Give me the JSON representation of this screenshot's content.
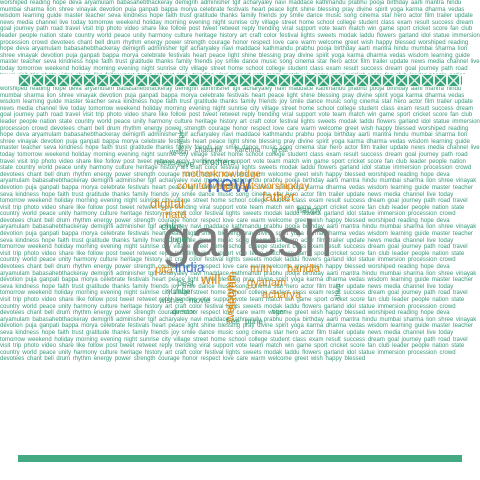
{
  "colors": {
    "grey": "#737373",
    "blue": "#4a6fc4",
    "orange": "#d88a1a",
    "green": "#3f9a74",
    "teal": "#2e8b80",
    "band": "#3aa57c"
  },
  "words": {
    "ganesh": "ganesh",
    "new": "new",
    "digital": "digital",
    "father": "father",
    "motherknowledge": "motherknowledge",
    "countdownparentsworshipday": "countdownparentsworshipday",
    "brothers": "brothers",
    "mata": "mata",
    "chanting": "chanting",
    "love": "love",
    "happy": "happy",
    "happiness": "happiness",
    "pita": "pita",
    "india": "india",
    "will": "will",
    "truth": "truth",
    "bandla": "bandla",
    "gyanam": "gyanam",
    "satyam": "satyam",
    "acharya": "acharya",
    "welcome": "welcome",
    "best": "best",
    "number": "number",
    "chkn": "chkn",
    "dugan": "dugan",
    "wishes": "wishes",
    "movie": "movie",
    "release": "release",
    "watch": "watch",
    "chaturthi": "chaturthi",
    "karenna": "karenna",
    "great": "great",
    "year": "year",
    "temple": "temple",
    "ramesh": "ramesh",
    "kumar": "kumar",
    "festival": "festival",
    "guru": "guru",
    "mother": "mother",
    "fans": "fans",
    "day": "day",
    "god": "god",
    "tweets": "tweets",
    "blessings": "blessings",
    "family": "family",
    "today": "today",
    "free": "free",
    "pune": "pune",
    "director": "director",
    "hyderabad": "hyderabad",
    "lord": "lord",
    "tiger": "tiger",
    "shiva": "shiva",
    "amma": "amma",
    "nani": "nani"
  },
  "filler_text": "worshiped reading hope deva aryamulam babasahebthackeray demigrifi adminisher tgif acharyaley navi maddace kathmandu prabhu pooja birthday aarti mantra hindu mumbai sharma lion shree vinayak devotion puja ganpati bappa morya celebrate festivals heart peace light shine blessing pray divine spirit yoga karma dharma vedas wisdom learning guide master teacher seva kindness hope faith trust gratitude thanks family friends joy smile dance music song cinema star hero actor film trailer update news media channel live today tomorrow weekend holiday morning evening night sunrise city village street home school college student class exam result success dream goal journey path road travel visit trip photo video share like follow post tweet retweet reply trending viral support vote team match win game sport cricket score fan club leader people nation state country world peace unity harmony culture heritage history art craft color festival lights sweets modak laddu flowers garland idol statue immersion procession crowd devotees chant bell drum rhythm energy power strength courage honor respect love care warm welcome greet wish happy blessed"
}
